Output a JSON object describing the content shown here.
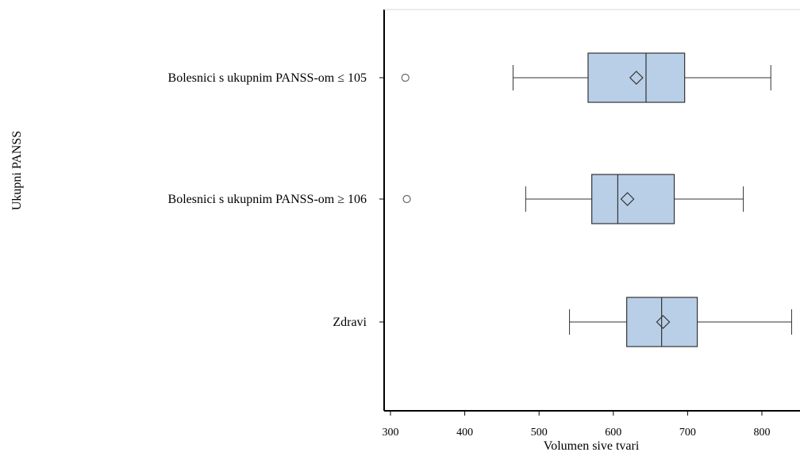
{
  "chart_data": {
    "type": "box",
    "orientation": "horizontal",
    "xlabel": "Volumen sive tvari",
    "ylabel": "Ukupni PANSS",
    "xlim": [
      290,
      850
    ],
    "xticks": [
      300,
      400,
      500,
      600,
      700,
      800
    ],
    "groups": [
      {
        "label": "Bolesnici s ukupnim PANSS-om ≤ 105",
        "whisker_low": 465,
        "q1": 566,
        "median": 644,
        "mean": 631,
        "q3": 696,
        "whisker_high": 812,
        "outliers": [
          320
        ]
      },
      {
        "label": "Bolesnici s ukupnim PANSS-om ≥ 106",
        "whisker_low": 482,
        "q1": 571,
        "median": 606,
        "mean": 619,
        "q3": 682,
        "whisker_high": 775,
        "outliers": [
          322
        ]
      },
      {
        "label": "Zdravi",
        "whisker_low": 541,
        "q1": 618,
        "median": 665,
        "mean": 667,
        "q3": 713,
        "whisker_high": 840,
        "outliers": []
      }
    ],
    "box_color": "#b9cfe8",
    "line_color": "#333333",
    "grid": false
  }
}
